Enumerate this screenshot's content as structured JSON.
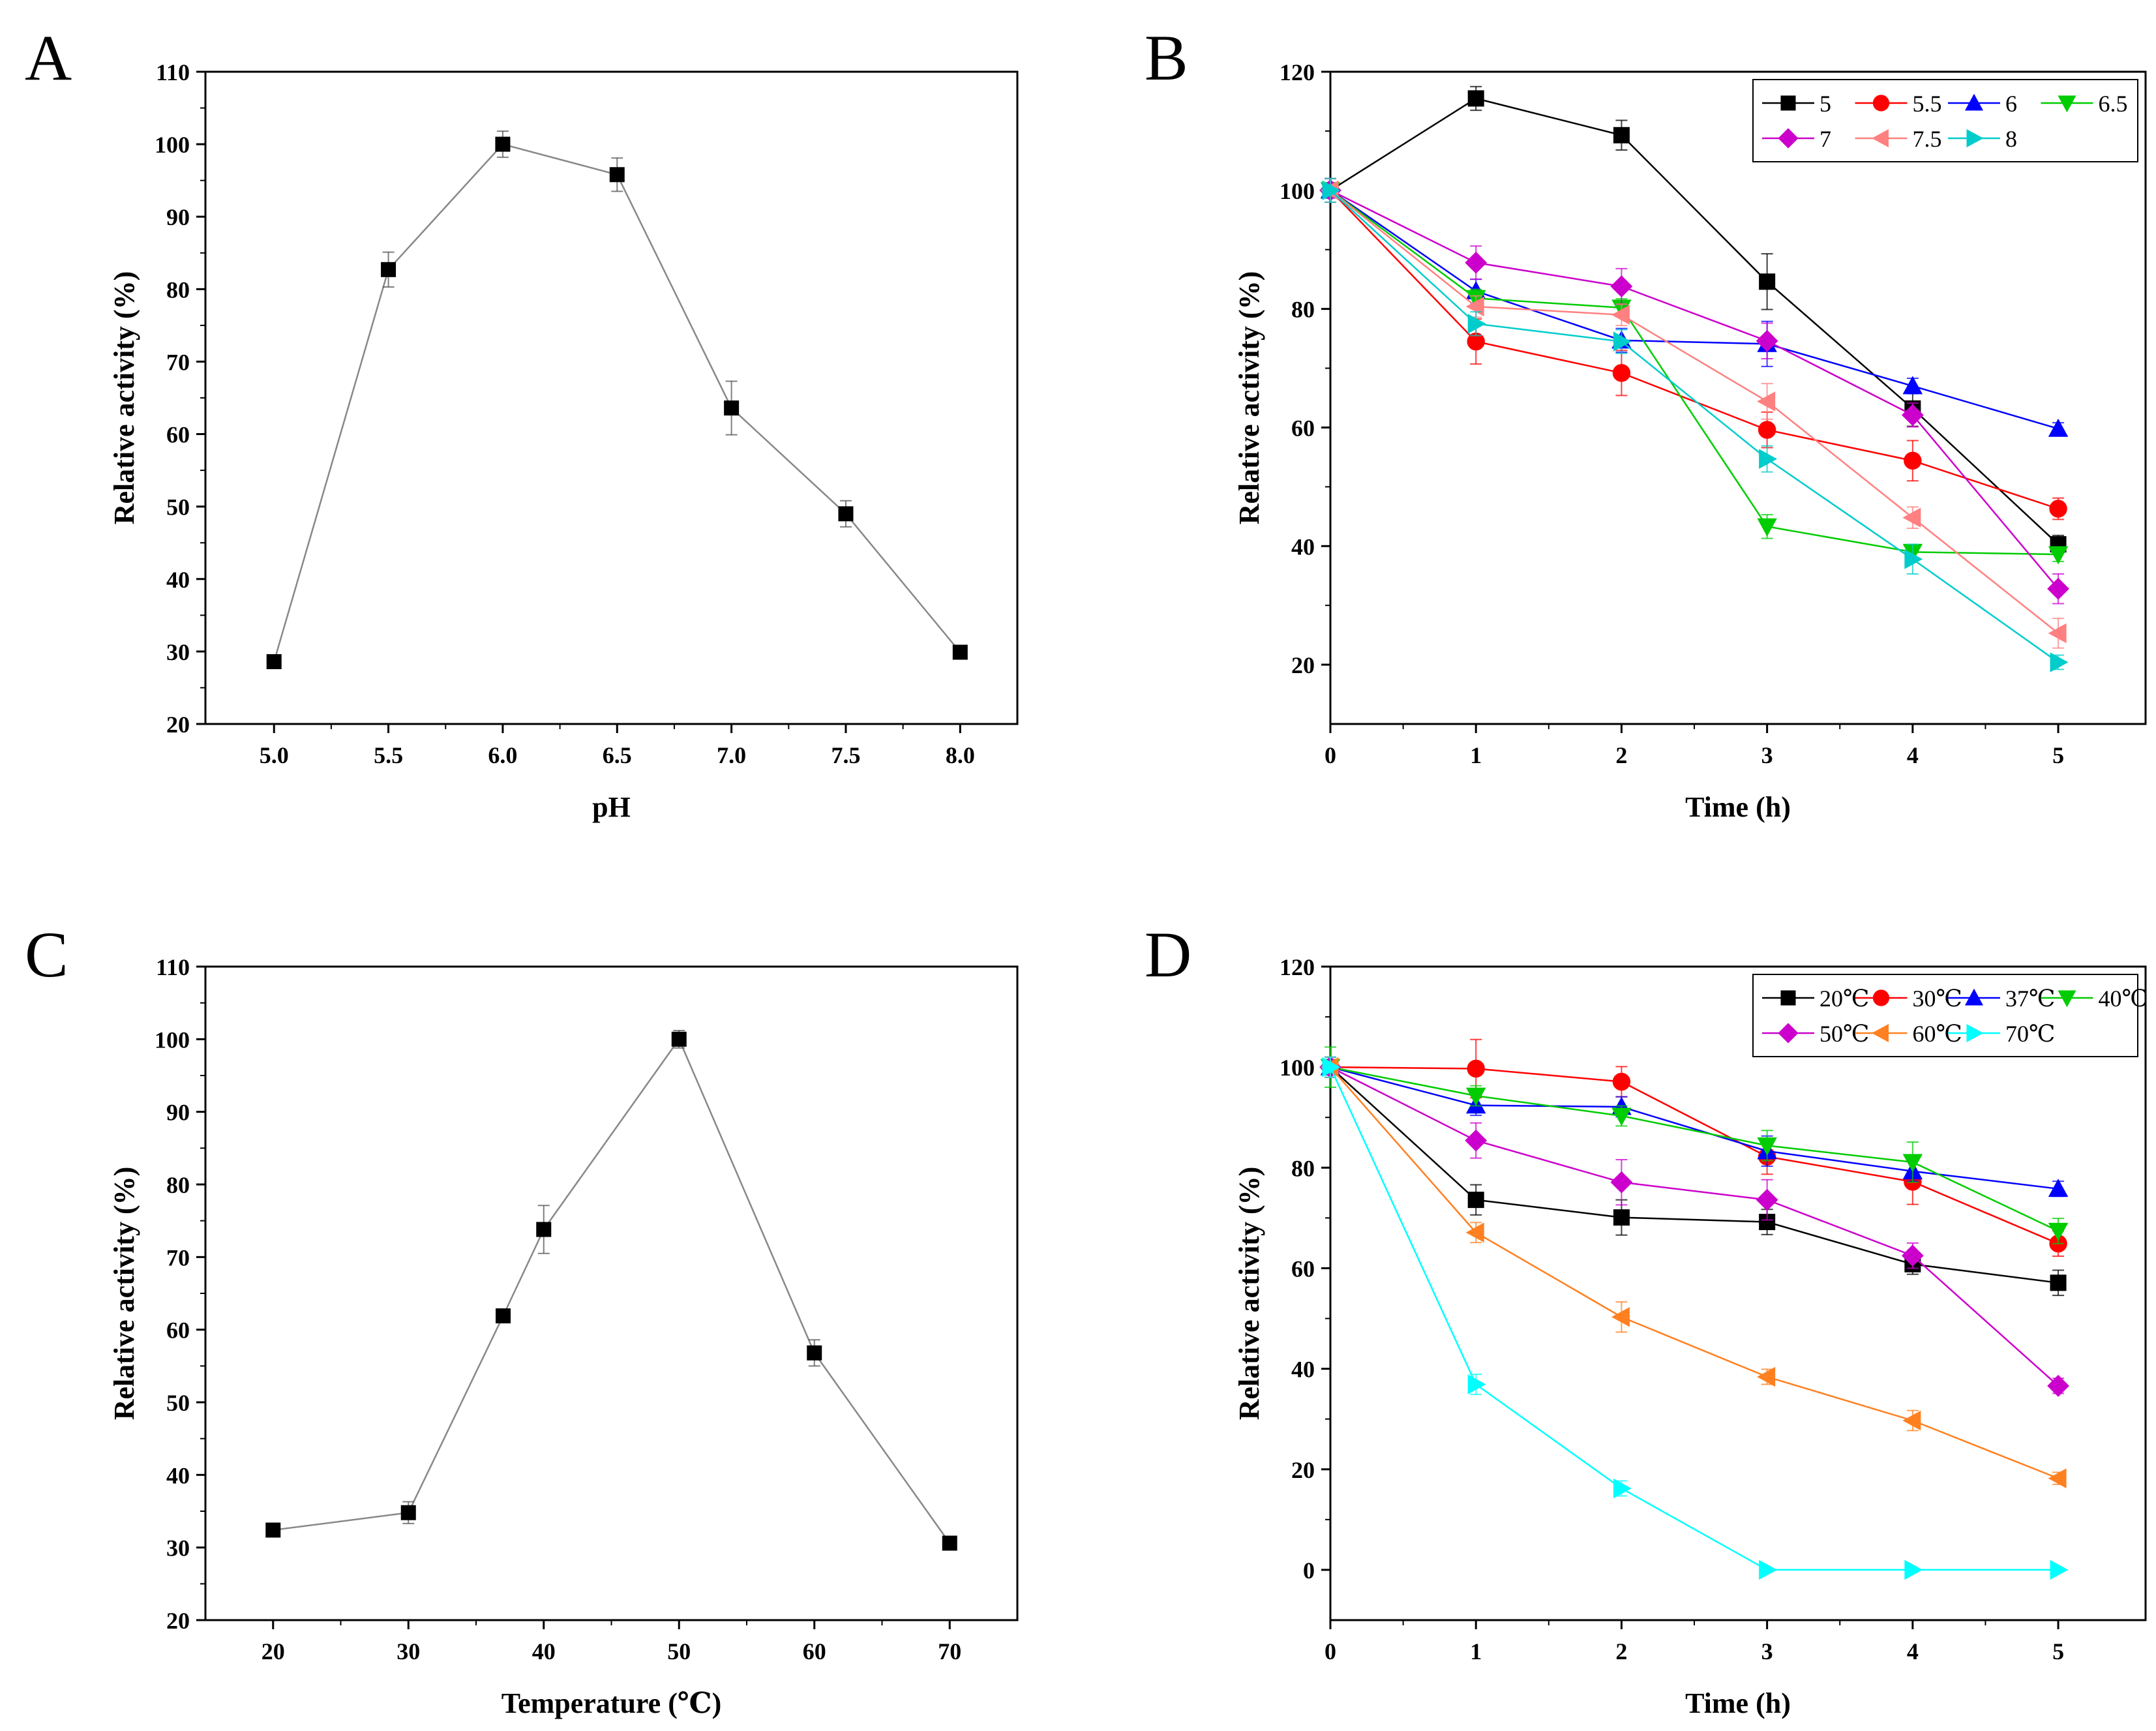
{
  "colors": {
    "black": "#000000",
    "red": "#ff0000",
    "blue": "#0000ff",
    "green": "#00cc00",
    "magenta": "#cc00cc",
    "salmon": "#ff8080",
    "cyan": "#00cccc",
    "orange": "#ff8020",
    "light_cyan": "#00ffff",
    "single_line": "#888888"
  },
  "chart_data": [
    {
      "panel": "A",
      "type": "line",
      "xlabel": "pH",
      "ylabel": "Relative activity (%)",
      "xlim": [
        4.7,
        8.25
      ],
      "ylim": [
        20,
        110
      ],
      "xticks": [
        "5.0",
        "5.5",
        "6.0",
        "6.5",
        "7.0",
        "7.5",
        "8.0"
      ],
      "yticks": [
        "20",
        "30",
        "40",
        "50",
        "60",
        "70",
        "80",
        "90",
        "100",
        "110"
      ],
      "legend": false,
      "series": [
        {
          "color": "black",
          "line_color": "single_line",
          "marker": "square",
          "x": [
            5.0,
            5.5,
            6.0,
            6.5,
            7.0,
            7.5,
            8.0
          ],
          "y": [
            28.6,
            82.7,
            100.0,
            95.8,
            63.6,
            49.0,
            29.9
          ],
          "err": [
            0.6,
            2.4,
            1.8,
            2.3,
            3.7,
            1.8,
            0.6
          ]
        }
      ]
    },
    {
      "panel": "B",
      "type": "line",
      "xlabel": "Time (h)",
      "ylabel": "Relative activity (%)",
      "xlim": [
        0,
        5.6
      ],
      "ylim": [
        10,
        120
      ],
      "xticks": [
        "0",
        "1",
        "2",
        "3",
        "4",
        "5"
      ],
      "yticks": [
        "20",
        "40",
        "60",
        "80",
        "100",
        "120"
      ],
      "legend": "top-right",
      "legend_columns": 4,
      "series": [
        {
          "name": "5",
          "color": "black",
          "marker": "square",
          "x": [
            0,
            1,
            2,
            3,
            4,
            5
          ],
          "y": [
            100,
            115.5,
            109.3,
            84.6,
            63.2,
            40.3
          ],
          "err": [
            2,
            2.0,
            2.5,
            4.7,
            3.0,
            1.5
          ]
        },
        {
          "name": "5.5",
          "color": "red",
          "marker": "circle",
          "x": [
            0,
            1,
            2,
            3,
            4,
            5
          ],
          "y": [
            100,
            74.5,
            69.2,
            59.6,
            54.4,
            46.3
          ],
          "err": [
            2,
            3.8,
            3.8,
            3.0,
            3.4,
            1.8
          ]
        },
        {
          "name": "6",
          "color": "blue",
          "marker": "triangle-up",
          "x": [
            0,
            1,
            2,
            3,
            4,
            5
          ],
          "y": [
            100,
            83.0,
            74.7,
            74.1,
            67.0,
            59.8
          ],
          "err": [
            2,
            2.0,
            2.0,
            3.8,
            1.3,
            1.0
          ]
        },
        {
          "name": "6.5",
          "color": "green",
          "marker": "triangle-down",
          "x": [
            0,
            1,
            2,
            3,
            4,
            5
          ],
          "y": [
            100,
            81.8,
            80.2,
            43.3,
            39.0,
            38.6
          ],
          "err": [
            2,
            1.5,
            1.5,
            2.0,
            1.2,
            1.2
          ]
        },
        {
          "name": "7",
          "color": "magenta",
          "marker": "diamond",
          "x": [
            0,
            1,
            2,
            3,
            4,
            5
          ],
          "y": [
            100,
            87.8,
            83.8,
            74.6,
            62.1,
            32.8
          ],
          "err": [
            2,
            2.8,
            3.0,
            3.0,
            2.0,
            2.5
          ]
        },
        {
          "name": "7.5",
          "color": "salmon",
          "marker": "triangle-left",
          "x": [
            0,
            1,
            2,
            3,
            4,
            5
          ],
          "y": [
            100,
            80.4,
            79.0,
            64.4,
            44.8,
            25.3
          ],
          "err": [
            2,
            1.8,
            1.8,
            3.0,
            1.8,
            2.5
          ]
        },
        {
          "name": "8",
          "color": "cyan",
          "marker": "triangle-right",
          "x": [
            0,
            1,
            2,
            3,
            4,
            5
          ],
          "y": [
            100,
            77.5,
            74.5,
            54.7,
            37.8,
            20.4
          ],
          "err": [
            2,
            2.0,
            2.0,
            2.2,
            2.5,
            1.2
          ]
        }
      ]
    },
    {
      "panel": "C",
      "type": "line",
      "xlabel": "Temperature (℃)",
      "ylabel": "Relative activity (%)",
      "xlim": [
        15,
        75
      ],
      "ylim": [
        20,
        110
      ],
      "xticks": [
        "20",
        "30",
        "40",
        "50",
        "60",
        "70"
      ],
      "yticks": [
        "20",
        "30",
        "40",
        "50",
        "60",
        "70",
        "80",
        "90",
        "100",
        "110"
      ],
      "legend": false,
      "series": [
        {
          "color": "black",
          "line_color": "single_line",
          "marker": "square",
          "x": [
            20,
            30,
            37,
            40,
            50,
            60,
            70
          ],
          "y": [
            32.4,
            34.8,
            61.9,
            73.8,
            100.0,
            56.8,
            30.6
          ],
          "err": [
            0.9,
            1.5,
            0.7,
            3.3,
            1.2,
            1.8,
            0.6
          ]
        }
      ]
    },
    {
      "panel": "D",
      "type": "line",
      "xlabel": "Time (h)",
      "ylabel": "Relative activity (%)",
      "xlim": [
        0,
        5.6
      ],
      "ylim": [
        -10,
        120
      ],
      "xticks": [
        "0",
        "1",
        "2",
        "3",
        "4",
        "5"
      ],
      "yticks": [
        "0",
        "20",
        "40",
        "60",
        "80",
        "100",
        "120"
      ],
      "legend": "top-right",
      "legend_columns": 4,
      "series": [
        {
          "name": "20℃",
          "color": "black",
          "marker": "square",
          "x": [
            0,
            1,
            2,
            3,
            4,
            5
          ],
          "y": [
            100,
            73.6,
            70.1,
            69.2,
            60.8,
            57.1
          ],
          "err": [
            2,
            3.0,
            3.5,
            2.5,
            2.0,
            2.5
          ]
        },
        {
          "name": "30℃",
          "color": "red",
          "marker": "circle",
          "x": [
            0,
            1,
            2,
            3,
            4,
            5
          ],
          "y": [
            100,
            99.7,
            97.1,
            82.2,
            77.2,
            64.9
          ],
          "err": [
            2,
            5.8,
            3.0,
            3.5,
            4.5,
            2.5
          ]
        },
        {
          "name": "37℃",
          "color": "blue",
          "marker": "triangle-up",
          "x": [
            0,
            1,
            2,
            3,
            4,
            5
          ],
          "y": [
            100,
            92.4,
            92.1,
            83.3,
            79.3,
            75.8
          ],
          "err": [
            2,
            2.0,
            2.0,
            3.0,
            2.0,
            1.5
          ]
        },
        {
          "name": "40℃",
          "color": "green",
          "marker": "triangle-down",
          "x": [
            0,
            1,
            2,
            3,
            4,
            5
          ],
          "y": [
            100,
            94.3,
            90.3,
            84.4,
            81.1,
            67.4
          ],
          "err": [
            4,
            2.0,
            2.0,
            3.0,
            4.0,
            2.5
          ]
        },
        {
          "name": "50℃",
          "color": "magenta",
          "marker": "diamond",
          "x": [
            0,
            1,
            2,
            3,
            4,
            5
          ],
          "y": [
            100,
            85.4,
            77.1,
            73.6,
            62.5,
            36.6
          ],
          "err": [
            2,
            3.5,
            4.5,
            4.0,
            2.5,
            1.5
          ]
        },
        {
          "name": "60℃",
          "color": "orange",
          "marker": "triangle-left",
          "x": [
            0,
            1,
            2,
            3,
            4,
            5
          ],
          "y": [
            100,
            67.1,
            50.3,
            38.4,
            29.7,
            18.2
          ],
          "err": [
            2,
            2.0,
            3.0,
            1.5,
            2.0,
            1.2
          ]
        },
        {
          "name": "70℃",
          "color": "light_cyan",
          "marker": "triangle-right",
          "x": [
            0,
            1,
            2,
            3,
            4,
            5
          ],
          "y": [
            100,
            36.9,
            16.2,
            0,
            0,
            0
          ],
          "err": [
            2,
            2.0,
            1.5,
            0,
            0,
            0
          ]
        }
      ]
    }
  ]
}
